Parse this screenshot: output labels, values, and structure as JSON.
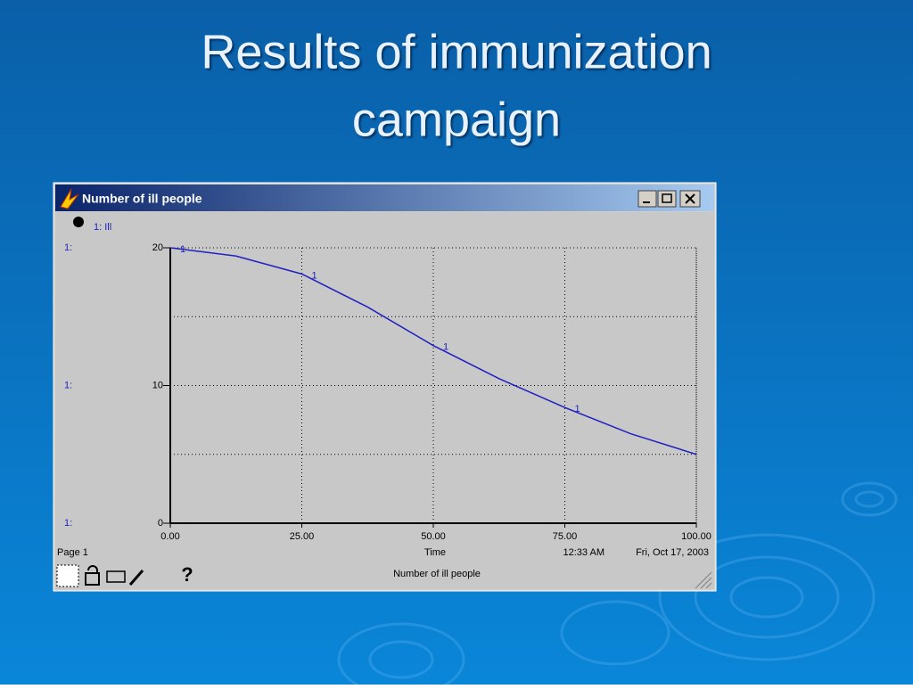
{
  "slide_title": "Results of immunization campaign",
  "chart_data": {
    "type": "line",
    "window_title": "Number of ill people",
    "x": [
      0,
      12.5,
      25,
      37.5,
      50,
      62.5,
      75,
      87.5,
      100
    ],
    "series": [
      {
        "name": "1: Ill",
        "marker_label": "1",
        "color": "#2020c0",
        "values": [
          20,
          19.4,
          18.1,
          15.7,
          12.9,
          10.5,
          8.4,
          6.5,
          5.0
        ]
      }
    ],
    "xlim": [
      0,
      100
    ],
    "xticks": [
      {
        "value": 0,
        "label": "0.00"
      },
      {
        "value": 25,
        "label": "25.00"
      },
      {
        "value": 50,
        "label": "50.00"
      },
      {
        "value": 75,
        "label": "75.00"
      },
      {
        "value": 100,
        "label": "100.00"
      }
    ],
    "ylim": [
      0,
      20
    ],
    "yticks": [
      0,
      10,
      20
    ],
    "y_minor_grid": [
      5,
      15
    ],
    "y_scale_labels": [
      "1:",
      "1:",
      "1:"
    ],
    "x_label": "Time",
    "page_label": "Page 1",
    "time_stamp": "12:33 AM",
    "date_stamp": "Fri, Oct 17, 2003",
    "footer": "Number of ill people",
    "help_icon": "?",
    "grid": true
  }
}
